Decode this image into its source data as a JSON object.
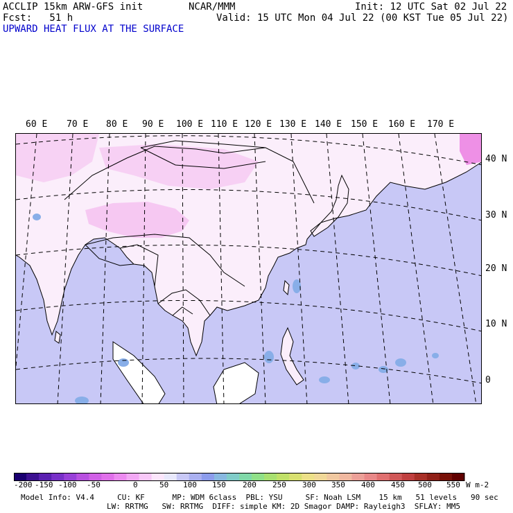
{
  "header": {
    "model_line": "ACCLIP 15km ARW-GFS init",
    "center": "NCAR/MMM",
    "init": "Init: 12 UTC Sat 02 Jul 22",
    "fcst": "Fcst:   51 h",
    "valid": "Valid: 15 UTC Mon 04 Jul 22 (00 KST Tue 05 Jul 22)",
    "field_title": "UPWARD HEAT FLUX AT THE SURFACE"
  },
  "map": {
    "lon_labels": [
      "60 E",
      "70 E",
      "80 E",
      "90 E",
      "100 E",
      "110 E",
      "120 E",
      "130 E",
      "140 E",
      "150 E",
      "160 E",
      "170 E"
    ],
    "lat_labels": [
      "40 N",
      "30 N",
      "20 N",
      "10 N",
      "0"
    ],
    "colors": {
      "ocean": "#c8c8f6",
      "land_pale": "#fbeefb",
      "land_pink": "#f6c8f2",
      "land_white": "#ffffff",
      "coast": "#000000",
      "grid": "#000000"
    }
  },
  "colorbar": {
    "tick_labels": [
      "-200",
      "-150",
      "-100",
      "-50",
      "0",
      "50",
      "100",
      "150",
      "200",
      "250",
      "300",
      "350",
      "400",
      "450",
      "500",
      "550"
    ],
    "unit": "W m-2",
    "colors": [
      "#1a0070",
      "#3c1090",
      "#5a20b0",
      "#7830c8",
      "#9840d8",
      "#b850e0",
      "#d060e6",
      "#e070ea",
      "#ec8af0",
      "#f2a8f4",
      "#f8c8f8",
      "#fce6fc",
      "#e8e8fc",
      "#c8c8f6",
      "#aab0f0",
      "#8c9cec",
      "#88b8e0",
      "#80ccc8",
      "#80d8a8",
      "#90e088",
      "#a8e070",
      "#c0e068",
      "#d8e070",
      "#ece088",
      "#f0d898",
      "#f0c8a0",
      "#f0b8a0",
      "#eca098",
      "#e88888",
      "#e07070",
      "#d05858",
      "#c04040",
      "#a83028",
      "#902018",
      "#781008",
      "#600000"
    ]
  },
  "footer": {
    "line1": "Model Info: V4.4     CU: KF      MP: WDM 6class  PBL: YSU     SF: Noah LSM    15 km   51 levels   90 sec",
    "line2": "LW: RRTMG   SW: RRTMG  DIFF: simple KM: 2D Smagor DAMP: Rayleigh3  SFLAY: MM5"
  }
}
